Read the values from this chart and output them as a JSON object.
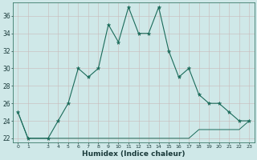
{
  "title": "",
  "xlabel": "Humidex (Indice chaleur)",
  "background_color": "#cfe8e8",
  "grid_color": "#b8d4d4",
  "line_color": "#1a6b5a",
  "x_values": [
    0,
    1,
    3,
    4,
    5,
    6,
    7,
    8,
    9,
    10,
    11,
    12,
    13,
    14,
    15,
    16,
    17,
    18,
    19,
    20,
    21,
    22,
    23
  ],
  "y_main": [
    25,
    22,
    22,
    24,
    26,
    30,
    29,
    30,
    35,
    33,
    37,
    34,
    34,
    37,
    32,
    29,
    30,
    27,
    26,
    26,
    25,
    24,
    24
  ],
  "y_lower": [
    25,
    22,
    22,
    22,
    22,
    22,
    22,
    22,
    22,
    22,
    22,
    22,
    22,
    22,
    22,
    22,
    22,
    23,
    23,
    23,
    23,
    23,
    24
  ],
  "ylim": [
    21.5,
    37.5
  ],
  "yticks": [
    22,
    24,
    26,
    28,
    30,
    32,
    34,
    36
  ],
  "xlim": [
    -0.5,
    23.5
  ],
  "xticks": [
    0,
    1,
    3,
    4,
    5,
    6,
    7,
    8,
    9,
    10,
    11,
    12,
    13,
    14,
    15,
    16,
    17,
    18,
    19,
    20,
    21,
    22,
    23
  ],
  "figsize": [
    3.2,
    2.0
  ],
  "dpi": 100
}
